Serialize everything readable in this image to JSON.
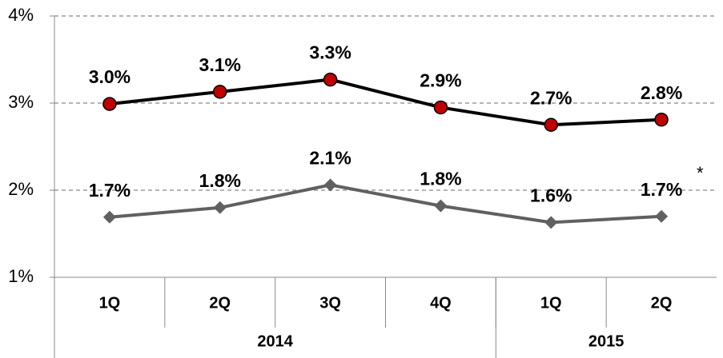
{
  "chart_data": {
    "type": "line",
    "categories": [
      "1Q",
      "2Q",
      "3Q",
      "4Q",
      "1Q",
      "2Q"
    ],
    "groups": [
      {
        "label": "2014",
        "count": 4
      },
      {
        "label": "2015",
        "count": 2
      }
    ],
    "series": [
      {
        "color": "#000000",
        "marker_color": "#c00000",
        "marker": "circle",
        "values": [
          2.99,
          3.13,
          3.27,
          2.95,
          2.75,
          2.81
        ],
        "value_labels": [
          "3.0%",
          "3.1%",
          "3.3%",
          "2.9%",
          "2.7%",
          "2.8%"
        ]
      },
      {
        "color": "#606060",
        "marker_color": "#606060",
        "marker": "diamond",
        "values": [
          1.69,
          1.8,
          2.06,
          1.82,
          1.63,
          1.7
        ],
        "value_labels": [
          "1.7%",
          "1.8%",
          "2.1%",
          "1.8%",
          "1.6%",
          "1.7%"
        ]
      }
    ],
    "annotation": "*",
    "ylim": [
      1,
      4
    ],
    "yticks": [
      {
        "value": 1,
        "label": "1%"
      },
      {
        "value": 2,
        "label": "2%"
      },
      {
        "value": 3,
        "label": "3%"
      },
      {
        "value": 4,
        "label": "4%"
      }
    ],
    "grid": true
  }
}
